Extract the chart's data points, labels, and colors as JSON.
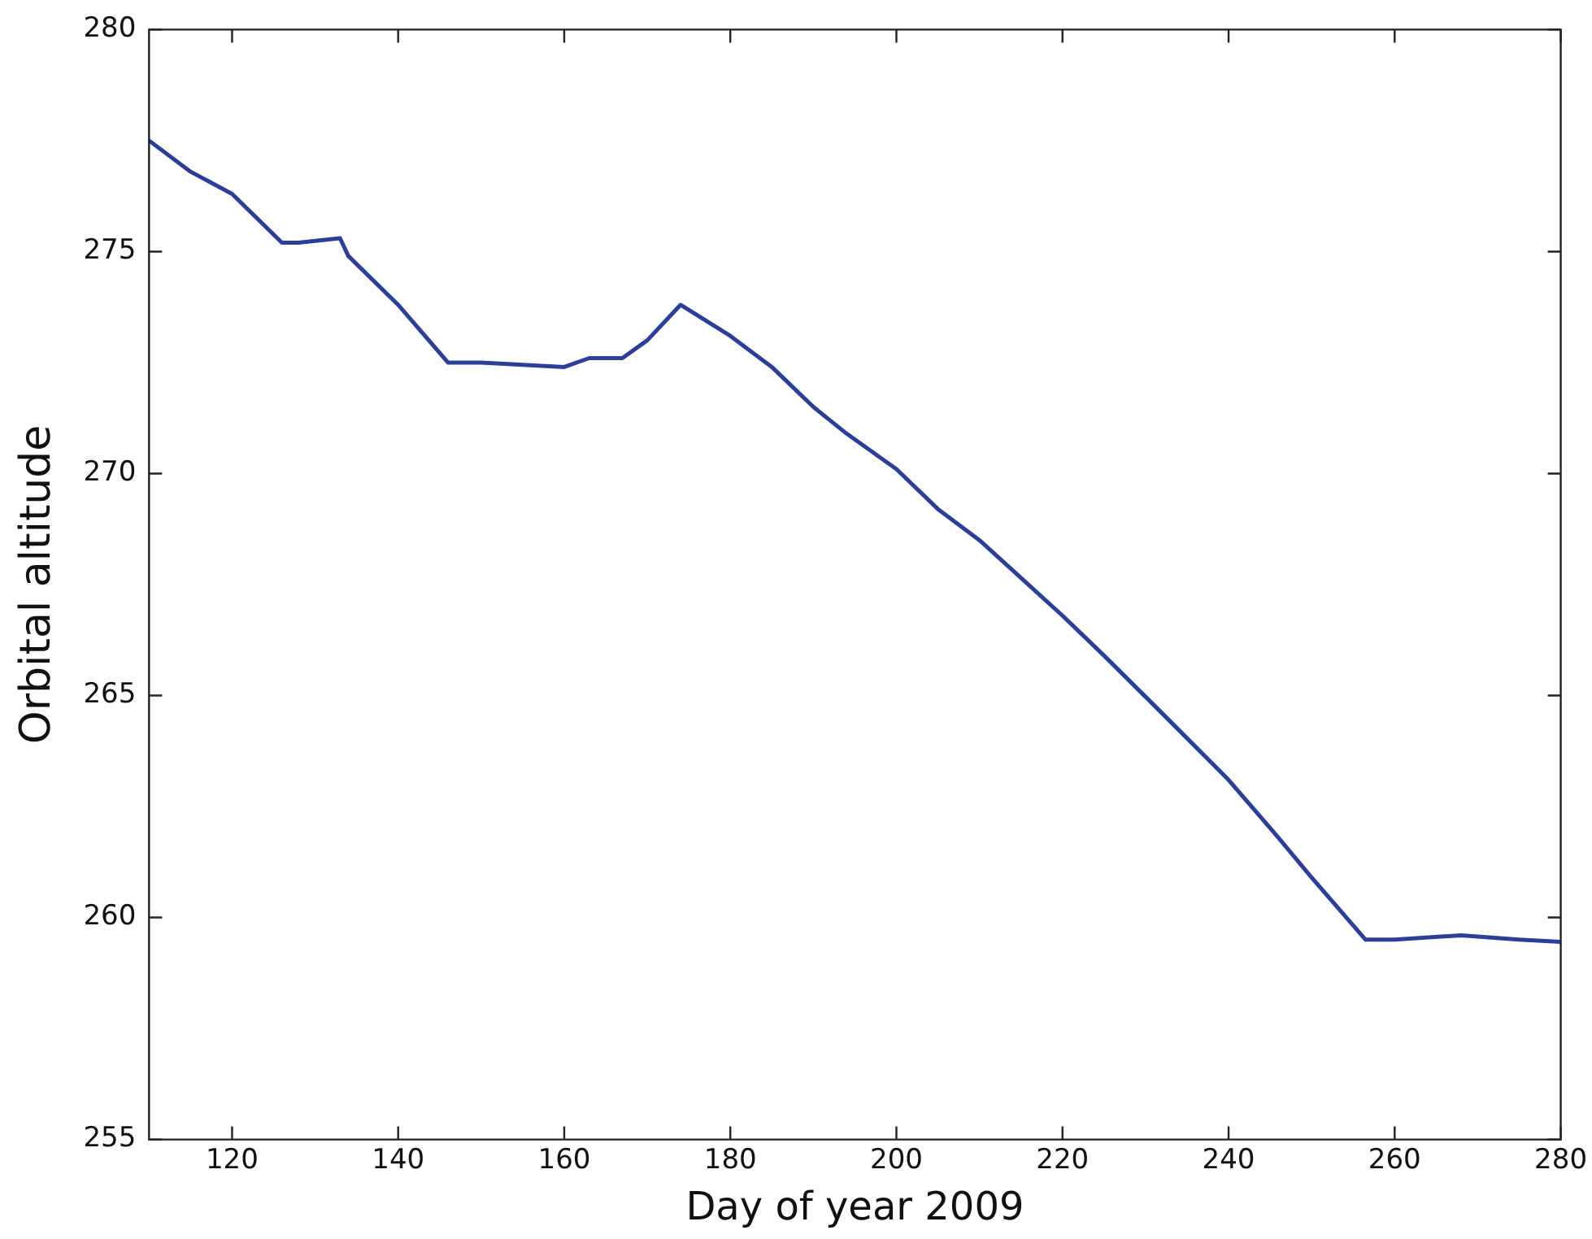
{
  "chart_data": {
    "type": "line",
    "xlabel": "Day of year 2009",
    "ylabel": "Orbital altitude",
    "x": [
      110,
      115,
      120,
      126,
      128,
      133,
      134,
      140,
      146,
      150,
      160,
      163,
      167,
      170,
      174,
      180,
      185,
      190,
      194,
      200,
      205,
      210,
      220,
      225,
      232,
      240,
      246,
      250,
      256.5,
      260,
      268,
      275,
      280
    ],
    "series": [
      {
        "color": "#2b3f99",
        "values": [
          277.5,
          276.8,
          276.3,
          275.2,
          275.2,
          275.3,
          274.9,
          273.8,
          272.5,
          272.5,
          272.4,
          272.6,
          272.6,
          273.0,
          273.8,
          273.1,
          272.4,
          271.5,
          270.9,
          270.1,
          269.2,
          268.5,
          266.8,
          265.9,
          264.6,
          263.1,
          261.8,
          260.9,
          259.5,
          259.5,
          259.6,
          259.5,
          259.45
        ]
      }
    ],
    "xlim": [
      110,
      280
    ],
    "xticks": [
      120,
      140,
      160,
      180,
      200,
      220,
      240,
      260,
      280
    ],
    "ylim": [
      255,
      280
    ],
    "yticks": [
      255,
      260,
      265,
      270,
      275,
      280
    ],
    "grid": false,
    "legend": false,
    "marker": "none",
    "line_style": "solid"
  }
}
